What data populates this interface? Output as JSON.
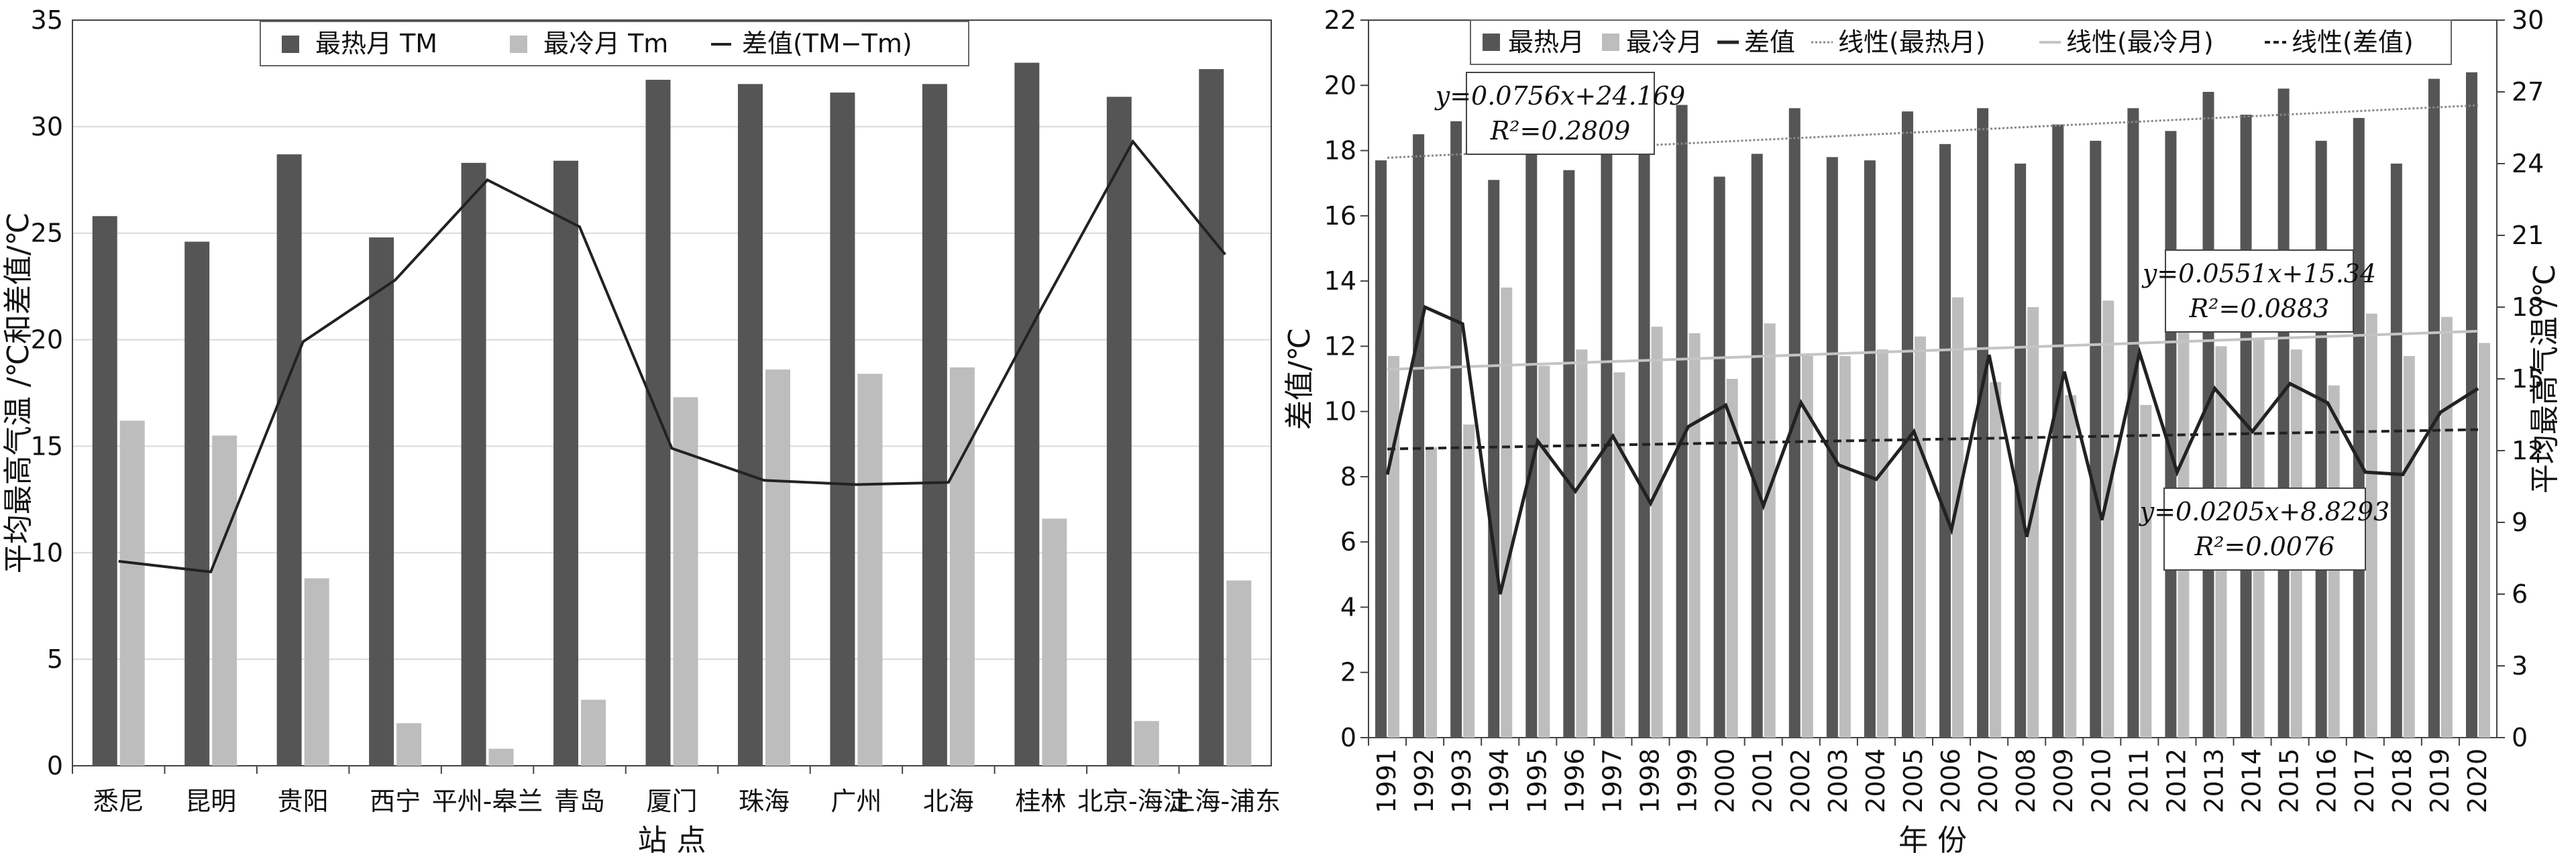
{
  "colors": {
    "dark_bar": "#555555",
    "light_bar": "#bdbdbd",
    "line": "#222222",
    "trend_hot": "#888888",
    "trend_cold": "#c4c4c4",
    "trend_diff": "#222222",
    "grid": "#d9d9d9"
  },
  "chart_data": [
    {
      "type": "bar",
      "categories": [
        "悉尼",
        "昆明",
        "贵阳",
        "西宁",
        "平州-皋兰",
        "青岛",
        "厦门",
        "珠海",
        "广州",
        "北海",
        "桂林",
        "北京-海淀",
        "上海-浦东"
      ],
      "series": [
        {
          "name": "最热月 TM",
          "type": "bar",
          "values": [
            25.8,
            24.6,
            28.7,
            24.8,
            28.3,
            28.4,
            32.2,
            32.0,
            31.6,
            32.0,
            33.0,
            31.4,
            32.7
          ]
        },
        {
          "name": "最冷月 Tm",
          "type": "bar",
          "values": [
            16.2,
            15.5,
            8.8,
            2.0,
            0.8,
            3.1,
            17.3,
            18.6,
            18.4,
            18.7,
            11.6,
            2.1,
            8.7
          ]
        },
        {
          "name": "差值(TM−Tm)",
          "type": "line",
          "values": [
            9.6,
            9.1,
            19.9,
            22.8,
            27.5,
            25.3,
            14.9,
            13.4,
            13.2,
            13.3,
            21.4,
            29.3,
            24.0
          ]
        }
      ],
      "ylabel": "平均最高气温 /℃和差值/℃",
      "xlabel": "站 点",
      "ylim": [
        0,
        35
      ],
      "yticks": [
        "0",
        "5",
        "10",
        "15",
        "20",
        "25",
        "30",
        "35"
      ],
      "grid": true,
      "legend": "top"
    },
    {
      "type": "bar",
      "categories": [
        "1991",
        "1992",
        "1993",
        "1994",
        "1995",
        "1996",
        "1997",
        "1998",
        "1999",
        "2000",
        "2001",
        "2002",
        "2003",
        "2004",
        "2005",
        "2006",
        "2007",
        "2008",
        "2009",
        "2010",
        "2011",
        "2012",
        "2013",
        "2014",
        "2015",
        "2016",
        "2017",
        "2018",
        "2019",
        "2020"
      ],
      "series": [
        {
          "name": "最热月",
          "type": "bar",
          "axis": "left",
          "values": [
            17.7,
            18.5,
            18.9,
            17.1,
            18.3,
            17.4,
            18.2,
            17.9,
            19.4,
            17.2,
            17.9,
            19.3,
            17.8,
            17.7,
            19.2,
            18.2,
            19.3,
            17.6,
            18.8,
            18.3,
            19.3,
            18.6,
            19.8,
            19.1,
            19.9,
            18.3,
            19.0,
            17.6,
            20.2,
            20.4
          ]
        },
        {
          "name": "最冷月",
          "type": "bar",
          "axis": "left",
          "values": [
            11.7,
            8.9,
            9.6,
            13.8,
            11.4,
            11.9,
            11.2,
            12.6,
            12.4,
            11.0,
            12.7,
            11.7,
            11.7,
            11.9,
            12.3,
            13.5,
            10.9,
            13.2,
            10.5,
            13.4,
            10.2,
            12.8,
            12.0,
            12.2,
            11.9,
            10.8,
            13.0,
            11.7,
            12.9,
            12.1
          ]
        },
        {
          "name": "差值",
          "type": "line",
          "axis": "right",
          "values": [
            11.0,
            18.0,
            17.3,
            6.0,
            12.4,
            10.3,
            12.6,
            9.8,
            13.0,
            13.9,
            9.7,
            14.0,
            11.4,
            10.8,
            12.8,
            8.7,
            16.0,
            8.4,
            15.3,
            9.1,
            16.1,
            11.1,
            14.6,
            12.8,
            14.8,
            14.0,
            11.1,
            11.0,
            13.6,
            14.6
          ]
        },
        {
          "name": "线性(最热月)",
          "type": "trend",
          "axis": "left",
          "slope": 0.0756,
          "intercept": 24.169
        },
        {
          "name": "线性(最冷月)",
          "type": "trend",
          "axis": "left",
          "slope": 0.0551,
          "intercept": 15.34
        },
        {
          "name": "线性(差值)",
          "type": "trend",
          "axis": "right",
          "slope": 0.0205,
          "intercept": 8.8293
        }
      ],
      "annotations": [
        {
          "equation": "y=0.0756x+24.169",
          "r2": "R²=0.2809"
        },
        {
          "equation": "y=0.0551x+15.34",
          "r2": "R²=0.0883"
        },
        {
          "equation": "y=0.0205x+8.8293",
          "r2": "R²=0.0076"
        }
      ],
      "ylabel_left": "差值/℃",
      "ylabel_right": "平均最高气温 /℃",
      "xlabel": "年 份",
      "ylim_left": [
        0,
        22
      ],
      "yticks_left": [
        "0",
        "2",
        "4",
        "6",
        "8",
        "10",
        "12",
        "14",
        "16",
        "18",
        "20",
        "22"
      ],
      "ylim_right": [
        0,
        30
      ],
      "yticks_right": [
        "0",
        "3",
        "6",
        "9",
        "12",
        "15",
        "18",
        "21",
        "24",
        "27",
        "30"
      ],
      "grid": false,
      "legend": "top"
    }
  ]
}
